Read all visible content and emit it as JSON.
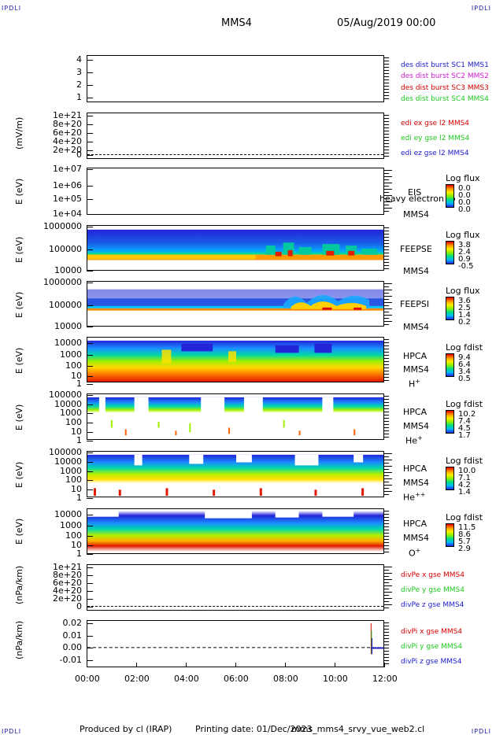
{
  "header": {
    "corner_tl": "IPDLI",
    "corner_tr": "IPDLI",
    "corner_bl": "IPDLI",
    "corner_br": "IPDLI",
    "spacecraft": "MMS4",
    "datetime": "05/Aug/2019 00:00"
  },
  "footer": {
    "producer": "Produced by cl (IRAP)",
    "printing": "Printing date: 01/Dec/2023",
    "script": "mms_mms4_srvy_vue_web2.cl"
  },
  "colors": {
    "red": "#d40000",
    "green": "#1fc81f",
    "blue": "#1a1acc",
    "magenta": "#d01ad0"
  },
  "x_axis": {
    "ticks": [
      "00:00",
      "02:00",
      "04:00",
      "06:00",
      "08:00",
      "10:00",
      "12:00"
    ]
  },
  "panels": {
    "p1": {
      "yticks": [
        "4",
        "3",
        "2",
        "1"
      ],
      "legend": [
        "des dist burst SC1 MMS1",
        "des dist burst SC2 MMS2",
        "des dist burst SC3 MMS3",
        "des dist burst SC4 MMS4"
      ]
    },
    "p2": {
      "ylabel": "(mV/m)",
      "yticks": [
        "1e+21",
        "8e+20",
        "6e+20",
        "4e+20",
        "2e+20",
        "0"
      ],
      "legend": [
        "edi ex gse l2 MMS4",
        "edi ey gse l2 MMS4",
        "edi ez gse l2 MMS4"
      ]
    },
    "p3": {
      "ylabel": "E (eV)",
      "yticks": [
        "1e+07",
        "1e+06",
        "1e+05",
        "1e+04"
      ],
      "instrument": "EIS",
      "overlay": "heavy electron to",
      "sc": "MMS4",
      "cbar": {
        "title": "Log flux",
        "values": [
          "0.0",
          "0.0",
          "0.0",
          "0.0"
        ]
      }
    },
    "p4": {
      "ylabel": "E (eV)",
      "yticks": [
        "1000000",
        "100000",
        "10000"
      ],
      "instrument": "FEEPSE",
      "sc": "MMS4",
      "cbar": {
        "title": "Log flux",
        "values": [
          "3.8",
          "2.4",
          "0.9",
          "-0.5"
        ]
      }
    },
    "p5": {
      "ylabel": "E (eV)",
      "yticks": [
        "1000000",
        "100000",
        "10000"
      ],
      "instrument": "FEEPSI",
      "sc": "MMS4",
      "cbar": {
        "title": "Log flux",
        "values": [
          "3.6",
          "2.5",
          "1.4",
          "0.2"
        ]
      }
    },
    "p6": {
      "ylabel": "E (eV)",
      "yticks": [
        "10000",
        "1000",
        "100",
        "10",
        "1"
      ],
      "instrument": "HPCA",
      "sc": "MMS4",
      "species": "H",
      "species_sup": "+",
      "cbar": {
        "title": "Log fdist",
        "values": [
          "9.4",
          "6.4",
          "3.4",
          "0.5"
        ]
      }
    },
    "p7": {
      "ylabel": "E (eV)",
      "yticks": [
        "100000",
        "10000",
        "1000",
        "100",
        "10",
        "1"
      ],
      "instrument": "HPCA",
      "sc": "MMS4",
      "species": "He",
      "species_sup": "+",
      "cbar": {
        "title": "Log fdist",
        "values": [
          "10.2",
          "7.4",
          "4.5",
          "1.7"
        ]
      }
    },
    "p8": {
      "ylabel": "E (eV)",
      "yticks": [
        "100000",
        "10000",
        "1000",
        "100",
        "10",
        "1"
      ],
      "instrument": "HPCA",
      "sc": "MMS4",
      "species": "He",
      "species_sup": "++",
      "cbar": {
        "title": "Log fdist",
        "values": [
          "10.0",
          "7.1",
          "4.2",
          "1.4"
        ]
      }
    },
    "p9": {
      "ylabel": "E (eV)",
      "yticks": [
        "10000",
        "1000",
        "100",
        "10",
        "1"
      ],
      "instrument": "HPCA",
      "sc": "MMS4",
      "species": "O",
      "species_sup": "+",
      "cbar": {
        "title": "Log fdist",
        "values": [
          "11.5",
          "8.6",
          "5.7",
          "2.9"
        ]
      }
    },
    "p10": {
      "ylabel": "(nPa/km)",
      "yticks": [
        "1e+21",
        "8e+20",
        "6e+20",
        "4e+20",
        "2e+20",
        "0"
      ],
      "legend": [
        "divPe x gse MMS4",
        "divPe y gse MMS4",
        "divPe z gse MMS4"
      ]
    },
    "p11": {
      "ylabel": "(nPa/km)",
      "yticks": [
        "0.02",
        "0.01",
        "0.00",
        "-0.01"
      ],
      "legend": [
        "divPi x gse MMS4",
        "divPi y gse MMS4",
        "divPi z gse MMS4"
      ]
    }
  },
  "chart_data": {
    "type": "heatmap",
    "x": {
      "label": "",
      "range": [
        "00:00",
        "12:00"
      ]
    },
    "series": [
      {
        "panel": "EDI E-field",
        "type": "line",
        "values": [
          0
        ]
      },
      {
        "panel": "FEEPS electrons (Log flux)",
        "range": [
          -0.5,
          3.8
        ],
        "ylim": [
          10000,
          1000000
        ],
        "log": true
      },
      {
        "panel": "FEEPS ions (Log flux)",
        "range": [
          0.2,
          3.6
        ],
        "ylim": [
          10000,
          1000000
        ],
        "log": true
      },
      {
        "panel": "HPCA H+ (Log fdist)",
        "range": [
          0.5,
          9.4
        ],
        "ylim": [
          1,
          30000
        ],
        "log": true
      },
      {
        "panel": "HPCA He+ (Log fdist)",
        "range": [
          1.7,
          10.2
        ],
        "ylim": [
          1,
          30000
        ],
        "log": true
      },
      {
        "panel": "HPCA He++ (Log fdist)",
        "range": [
          1.4,
          10.0
        ],
        "ylim": [
          1,
          30000
        ],
        "log": true
      },
      {
        "panel": "HPCA O+ (Log fdist)",
        "range": [
          2.9,
          11.5
        ],
        "ylim": [
          1,
          30000
        ],
        "log": true
      },
      {
        "panel": "divPi (nPa/km)",
        "type": "line",
        "ylim": [
          -0.015,
          0.022
        ],
        "spike_time": "11:30",
        "spike_min": -0.005,
        "spike_max": 0.02
      }
    ]
  }
}
